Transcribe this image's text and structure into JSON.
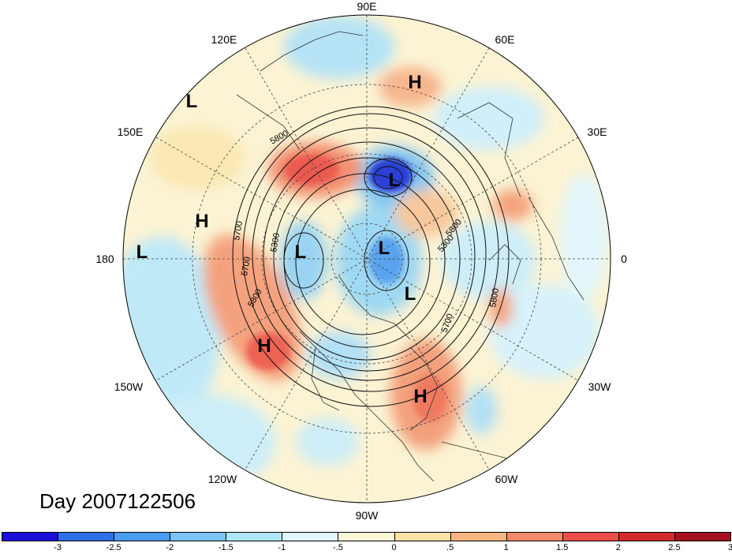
{
  "title": "Day 2007122506",
  "lon_labels": {
    "n90e": "90E",
    "n120e": "120E",
    "n60e": "60E",
    "n150e": "150E",
    "n30e": "30E",
    "n180": "180",
    "n0": "0",
    "n150w": "150W",
    "n30w": "30W",
    "n120w": "120W",
    "n60w": "60W",
    "n90w": "90W"
  },
  "pressure_centers": [
    {
      "type": "L"
    },
    {
      "type": "H"
    },
    {
      "type": "L"
    },
    {
      "type": "H"
    },
    {
      "type": "L"
    },
    {
      "type": "L"
    },
    {
      "type": "L"
    },
    {
      "type": "L"
    },
    {
      "type": "H"
    },
    {
      "type": "H"
    }
  ],
  "contour_labels": [
    "5800",
    "5700",
    "5300",
    "5700",
    "5800",
    "5300",
    "5800",
    "5700",
    "5800"
  ],
  "colorbar": {
    "colors": [
      "#1a0fd6",
      "#2e6ee8",
      "#4a9cf0",
      "#7bc2f5",
      "#aee6f8",
      "#dff6fc",
      "#fbf6d8",
      "#fbe3a8",
      "#f7b582",
      "#f18a66",
      "#ec4d4a",
      "#d32a2e",
      "#a4111f"
    ],
    "ticks": [
      "-3",
      "-2.5",
      "-2",
      "-1.5",
      "-1",
      "-.5",
      "0",
      ".5",
      "1",
      "1.5",
      "2",
      "2.5",
      "3"
    ]
  },
  "icons": {
    "projection": "polar-stereographic-map",
    "colorbar": "color-scale"
  }
}
